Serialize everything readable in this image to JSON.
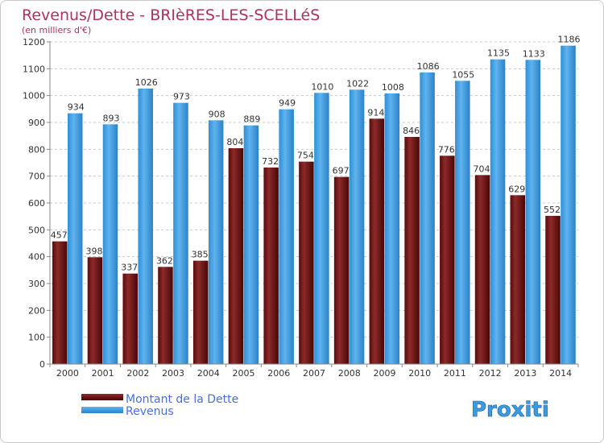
{
  "chart_data": {
    "type": "bar",
    "title": "Revenus/Dette - BRIèRES-LES-SCELLéS",
    "subtitle": "(en milliers d'€)",
    "categories": [
      "2000",
      "2001",
      "2002",
      "2003",
      "2004",
      "2005",
      "2006",
      "2007",
      "2008",
      "2009",
      "2010",
      "2011",
      "2012",
      "2013",
      "2014"
    ],
    "series": [
      {
        "name": "Montant de la Dette",
        "color": "#7a1a1a",
        "values": [
          457,
          398,
          337,
          362,
          385,
          804,
          732,
          754,
          697,
          914,
          846,
          776,
          704,
          629,
          552
        ]
      },
      {
        "name": "Revenus",
        "color": "#4da6e8",
        "values": [
          934,
          893,
          1026,
          973,
          908,
          889,
          949,
          1010,
          1022,
          1008,
          1086,
          1055,
          1135,
          1133,
          1186
        ]
      }
    ],
    "ylim": [
      0,
      1200
    ],
    "yticks": [
      0,
      100,
      200,
      300,
      400,
      500,
      600,
      700,
      800,
      900,
      1000,
      1100,
      1200
    ],
    "grid": true,
    "legend_position": "bottom-left"
  },
  "logo": {
    "text": "Proxiti"
  },
  "colors": {
    "title": "#b03060",
    "legend_text": "#4a6ee0",
    "axis_text": "#333333",
    "grid": "#c8c8c8"
  }
}
